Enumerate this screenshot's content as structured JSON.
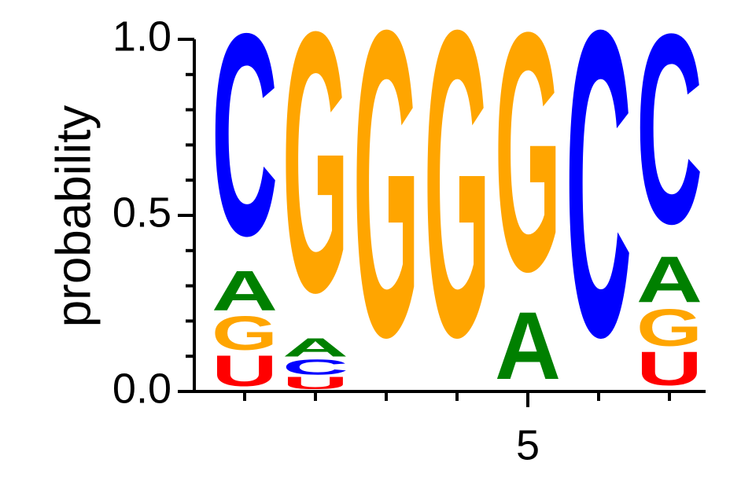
{
  "chart_data": {
    "type": "logo",
    "y_label": "probability",
    "categories": [
      null,
      null,
      null,
      null,
      "5",
      null,
      null
    ],
    "series": [
      {
        "name": "U",
        "color": "#ff0000",
        "values": [
          0.1,
          0.04,
          0,
          0,
          0,
          0,
          0.11
        ]
      },
      {
        "name": "C",
        "color": "#0000ff",
        "values": [
          0.66,
          0.05,
          0,
          0,
          0,
          1.0,
          0.62
        ]
      },
      {
        "name": "G",
        "color": "#ffa500",
        "values": [
          0.11,
          0.85,
          1.0,
          1.0,
          0.78,
          0,
          0.12
        ]
      },
      {
        "name": "A",
        "color": "#008000",
        "values": [
          0.13,
          0.06,
          0,
          0,
          0.22,
          0,
          0.15
        ]
      }
    ],
    "ylim": [
      0,
      1
    ],
    "yticks": [
      {
        "value": 0,
        "label": "0.0"
      },
      {
        "value": 0.5,
        "label": "0.5"
      },
      {
        "value": 1,
        "label": "1.0"
      }
    ],
    "yminorticks": [
      0.1,
      0.2,
      0.3,
      0.4,
      0.6,
      0.7,
      0.8,
      0.9
    ]
  }
}
